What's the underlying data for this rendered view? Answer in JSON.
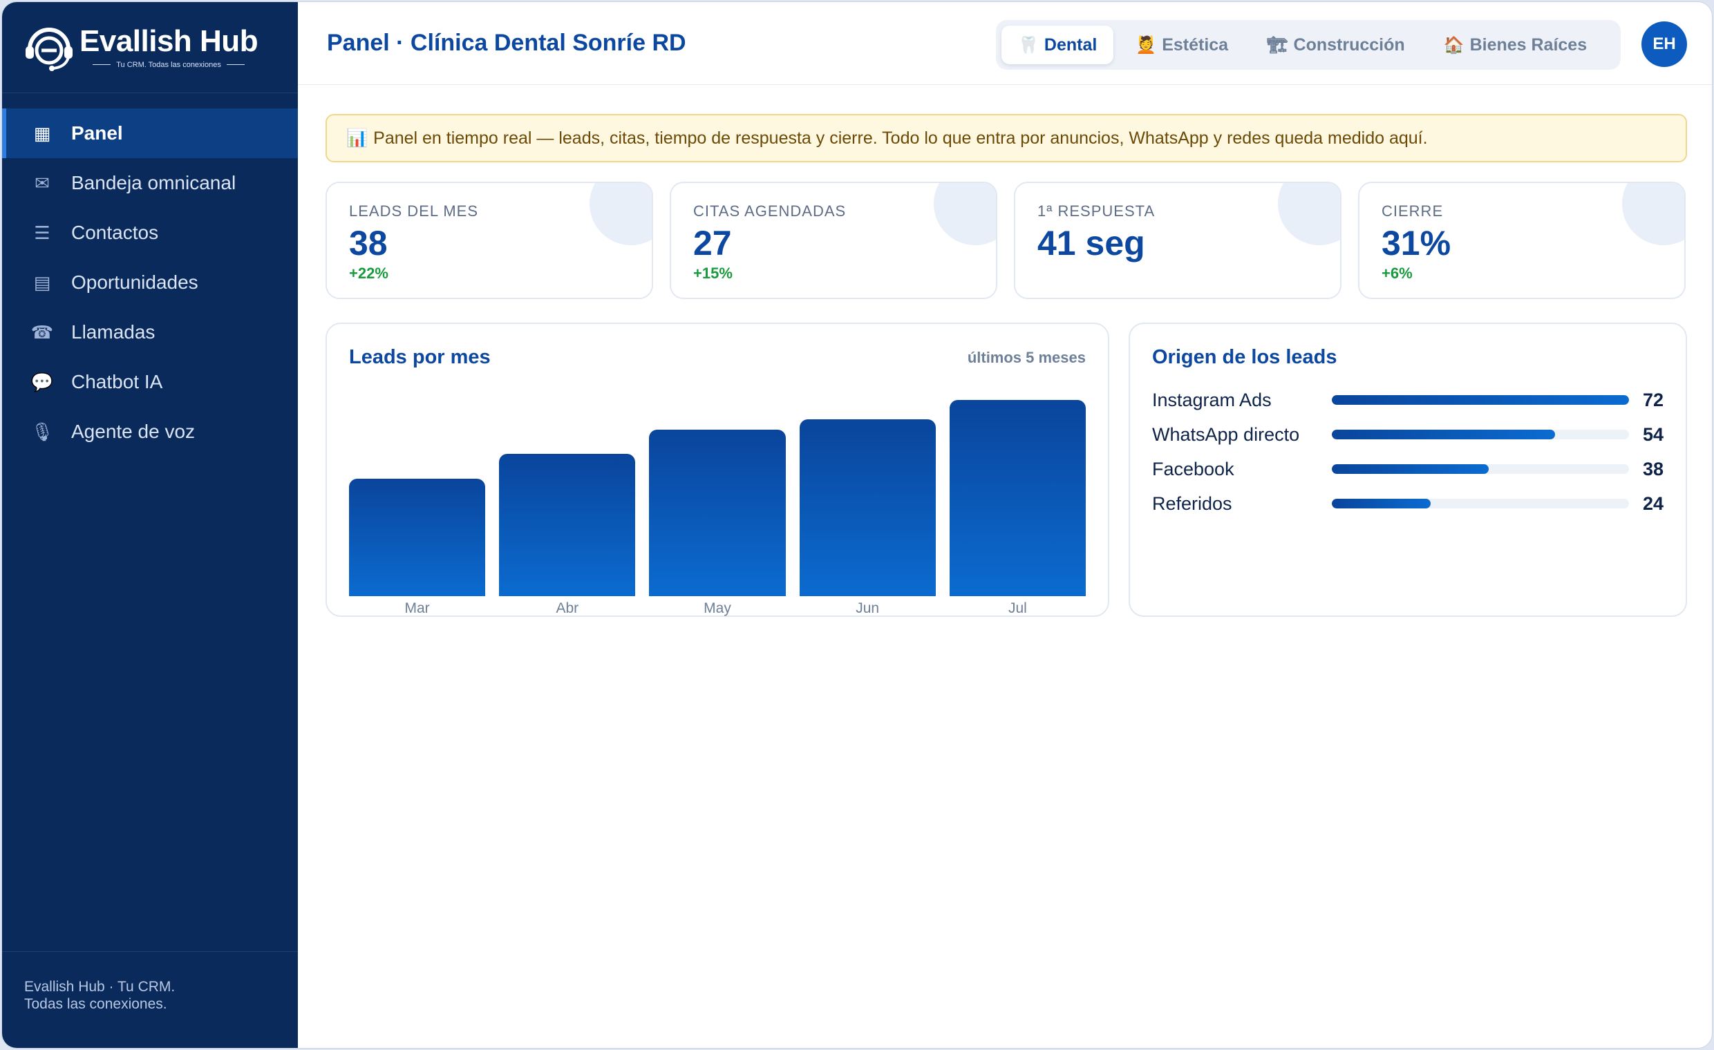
{
  "brand": {
    "name": "Evallish Hub",
    "tagline": "Tu CRM. Todas las conexiones"
  },
  "sidebar": {
    "items": [
      {
        "label": "Panel",
        "icon": "dashboard-grid-icon",
        "glyph": "▦"
      },
      {
        "label": "Bandeja omnicanal",
        "icon": "envelope-icon",
        "glyph": "✉"
      },
      {
        "label": "Contactos",
        "icon": "list-icon",
        "glyph": "☰"
      },
      {
        "label": "Oportunidades",
        "icon": "document-icon",
        "glyph": "▤"
      },
      {
        "label": "Llamadas",
        "icon": "phone-icon",
        "glyph": "☎"
      },
      {
        "label": "Chatbot IA",
        "icon": "chat-bubble-icon",
        "glyph": "💬"
      },
      {
        "label": "Agente de voz",
        "icon": "microphone-icon",
        "glyph": "🎙"
      }
    ],
    "footer_line1": "Evallish Hub · Tu CRM.",
    "footer_line2": "Todas las conexiones."
  },
  "header": {
    "title": "Panel · Clínica Dental Sonríe RD",
    "verticals": [
      {
        "label": "Dental",
        "icon": "tooth-icon",
        "glyph": "🦷"
      },
      {
        "label": "Estética",
        "icon": "spa-icon",
        "glyph": "💆"
      },
      {
        "label": "Construcción",
        "icon": "crane-icon",
        "glyph": "🏗"
      },
      {
        "label": "Bienes Raíces",
        "icon": "house-icon",
        "glyph": "🏠"
      }
    ],
    "avatar_initials": "EH"
  },
  "banner": {
    "icon": "bar-chart-icon",
    "glyph": "📊",
    "text": "Panel en tiempo real — leads, citas, tiempo de respuesta y cierre. Todo lo que entra por anuncios, WhatsApp y redes queda medido aquí."
  },
  "kpis": [
    {
      "label": "LEADS DEL MES",
      "value": "38",
      "delta": "+22%"
    },
    {
      "label": "CITAS AGENDADAS",
      "value": "27",
      "delta": "+15%"
    },
    {
      "label": "1ª RESPUESTA",
      "value": "41 seg",
      "delta": ""
    },
    {
      "label": "CIERRE",
      "value": "31%",
      "delta": "+6%"
    }
  ],
  "leads_chart": {
    "title": "Leads por mes",
    "subtitle": "últimos 5 meses"
  },
  "origin": {
    "title": "Origen de los leads",
    "sources": [
      {
        "name": "Instagram Ads",
        "value": 72
      },
      {
        "name": "WhatsApp directo",
        "value": 54
      },
      {
        "name": "Facebook",
        "value": 38
      },
      {
        "name": "Referidos",
        "value": 24
      }
    ]
  },
  "chart_data": {
    "type": "bar",
    "categories": [
      "Mar",
      "Abr",
      "May",
      "Jun",
      "Jul"
    ],
    "values": [
      24,
      29,
      34,
      36,
      40
    ],
    "title": "Leads por mes",
    "xlabel": "",
    "ylabel": "",
    "ylim": [
      0,
      40
    ]
  },
  "colors": {
    "sidebar_bg": "#0a2a5c",
    "accent": "#0d48a0",
    "positive": "#1a9a3e",
    "banner_bg": "#fff8e1"
  }
}
